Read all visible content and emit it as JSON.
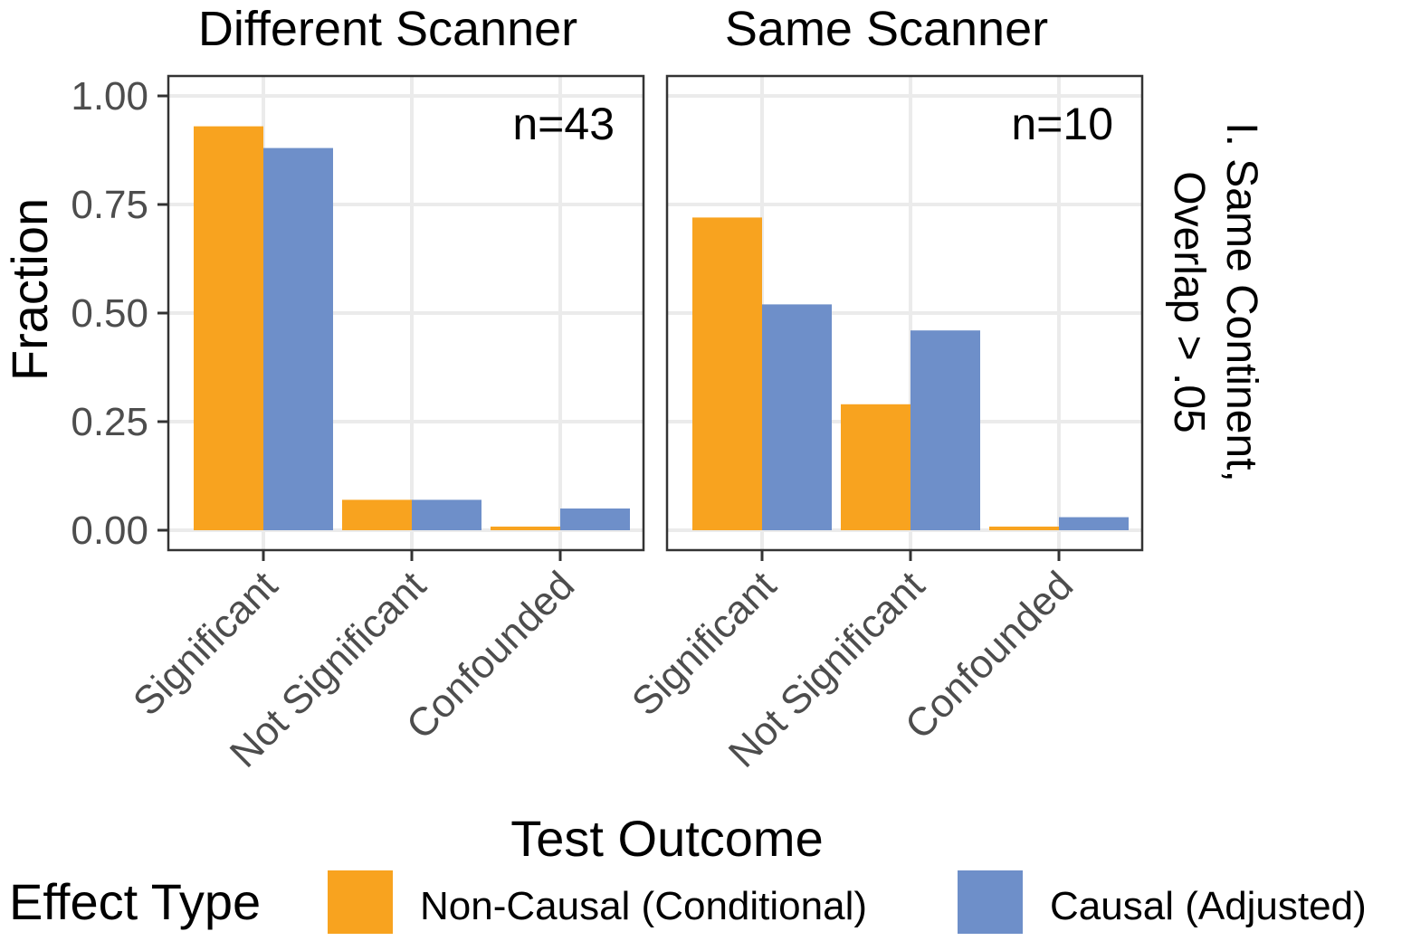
{
  "chart_data": {
    "type": "bar",
    "xlabel": "Test Outcome",
    "ylabel": "Fraction",
    "ylim": [
      0,
      1.05
    ],
    "yticks": [
      "0.00",
      "0.25",
      "0.50",
      "0.75",
      "1.00"
    ],
    "categories": [
      "Significant",
      "Not Significant",
      "Confounded"
    ],
    "row_strip": "I. Same Continent,\nOverlap > .05",
    "grid": true,
    "legend": {
      "title": "Effect Type",
      "position": "bottom",
      "entries": [
        {
          "name": "Non-Causal (Conditional)",
          "color": "#F8A31F"
        },
        {
          "name": "Causal (Adjusted)",
          "color": "#6E8FC9"
        }
      ]
    },
    "panels": [
      {
        "title": "Different Scanner",
        "annotation": "n=43",
        "series": [
          {
            "name": "Non-Causal (Conditional)",
            "values": [
              0.93,
              0.07,
              0.0
            ]
          },
          {
            "name": "Causal (Adjusted)",
            "values": [
              0.88,
              0.07,
              0.05
            ]
          }
        ]
      },
      {
        "title": "Same Scanner",
        "annotation": "n=10",
        "series": [
          {
            "name": "Non-Causal (Conditional)",
            "values": [
              0.72,
              0.29,
              0.0
            ]
          },
          {
            "name": "Causal (Adjusted)",
            "values": [
              0.52,
              0.46,
              0.03
            ]
          }
        ]
      }
    ]
  }
}
